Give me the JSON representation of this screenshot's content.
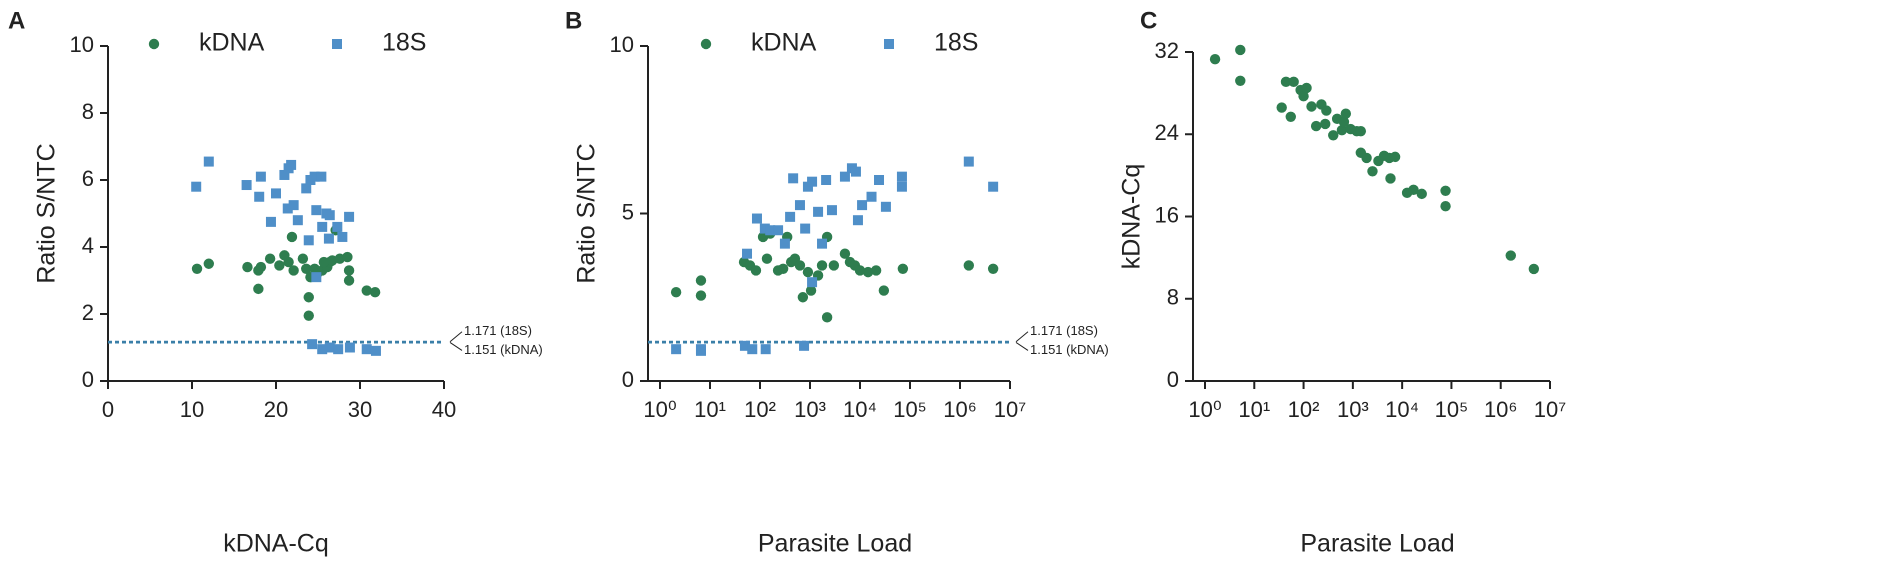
{
  "chart_data": [
    {
      "type": "scatter",
      "title": "A",
      "xlabel": "kDNA-Cq",
      "ylabel": "Ratio S/NTC",
      "xlim": [
        0,
        40
      ],
      "xticks": [
        0,
        10,
        20,
        30,
        40
      ],
      "ylim": [
        0,
        10
      ],
      "yticks": [
        0,
        2,
        4,
        6,
        8,
        10
      ],
      "legend": "top",
      "reference_lines": [
        {
          "value": 1.171,
          "label": "1.171 (18S)"
        },
        {
          "value": 1.151,
          "label": "1.151 (kDNA)"
        }
      ],
      "series": [
        {
          "name": "kDNA",
          "color": "#2e7d4f",
          "marker": "circle",
          "x": [
            10.6,
            12,
            16.6,
            17.9,
            17.9,
            18.2,
            19.3,
            20.4,
            21,
            21.5,
            21.9,
            22.1,
            23.2,
            23.6,
            23.9,
            23.9,
            24.1,
            24.6,
            24.9,
            25.5,
            26.1,
            26.4,
            26.7,
            27.1,
            27.6,
            28.5,
            28.7,
            28.7,
            30.8,
            31.8,
            25.7
          ],
          "values": [
            3.35,
            3.5,
            3.4,
            3.3,
            2.75,
            3.4,
            3.65,
            3.45,
            3.75,
            3.55,
            4.3,
            3.3,
            3.65,
            3.35,
            2.5,
            1.95,
            3.1,
            3.35,
            3.2,
            3.3,
            3.4,
            3.55,
            3.6,
            4.5,
            3.65,
            3.7,
            3.3,
            3.0,
            2.7,
            2.65,
            3.55
          ]
        },
        {
          "name": "18S",
          "color": "#4f8fc8",
          "marker": "square",
          "x": [
            10.5,
            12,
            16.5,
            18,
            18.2,
            19.4,
            20,
            21,
            21.5,
            21.8,
            21.4,
            22.1,
            22.6,
            23.6,
            23.9,
            24.1,
            24.6,
            25.4,
            24.8,
            26,
            26.4,
            25.5,
            27.3,
            27.9,
            28.7,
            24.8,
            26.3,
            24.3,
            25.5,
            26.4,
            27.4,
            28.8,
            30.8,
            31.9
          ],
          "values": [
            5.8,
            6.55,
            5.85,
            5.5,
            6.1,
            4.75,
            5.6,
            6.15,
            6.35,
            6.45,
            5.15,
            5.25,
            4.8,
            5.75,
            4.2,
            6.0,
            6.1,
            6.1,
            5.1,
            5.0,
            4.95,
            4.6,
            4.6,
            4.3,
            4.9,
            3.1,
            4.25,
            1.1,
            0.95,
            1.0,
            0.95,
            1.0,
            0.95,
            0.9
          ]
        }
      ]
    },
    {
      "type": "scatter",
      "title": "B",
      "xlabel": "Parasite Load",
      "ylabel": "Ratio S/NTC",
      "xscale": "log",
      "xlim": [
        1,
        10000000
      ],
      "xticks": [
        {
          "value": 1,
          "label": "10⁰"
        },
        {
          "value": 10,
          "label": "10¹"
        },
        {
          "value": 100,
          "label": "10²"
        },
        {
          "value": 1000,
          "label": "10³"
        },
        {
          "value": 10000,
          "label": "10⁴"
        },
        {
          "value": 100000,
          "label": "10⁵"
        },
        {
          "value": 1000000,
          "label": "10⁶"
        },
        {
          "value": 10000000,
          "label": "10⁷"
        }
      ],
      "ylim": [
        0,
        10
      ],
      "yticks": [
        0,
        5,
        10
      ],
      "legend": "top",
      "reference_lines": [
        {
          "value": 1.171,
          "label": "1.171 (18S)"
        },
        {
          "value": 1.151,
          "label": "1.151 (kDNA)"
        }
      ],
      "series": [
        {
          "name": "kDNA",
          "color": "#2e7d4f",
          "marker": "circle",
          "x": [
            2.1,
            6.6,
            6.6,
            48,
            63,
            83,
            115,
            138,
            160,
            230,
            290,
            350,
            420,
            500,
            630,
            720,
            910,
            1050,
            1450,
            1740,
            2200,
            2200,
            3000,
            5000,
            6300,
            7900,
            10000,
            14500,
            21000,
            30000,
            72000,
            1500000,
            4600000
          ],
          "values": [
            2.65,
            3.0,
            2.55,
            3.55,
            3.45,
            3.3,
            4.3,
            3.65,
            4.4,
            3.3,
            3.35,
            4.3,
            3.55,
            3.65,
            3.45,
            2.5,
            3.25,
            2.7,
            3.15,
            3.45,
            4.3,
            1.9,
            3.45,
            3.8,
            3.55,
            3.45,
            3.3,
            3.25,
            3.3,
            2.7,
            3.35,
            3.45,
            3.35
          ]
        },
        {
          "name": "18S",
          "color": "#4f8fc8",
          "marker": "square",
          "x": [
            2.1,
            6.6,
            6.6,
            50,
            70,
            130,
            760,
            55,
            87,
            125,
            160,
            230,
            315,
            400,
            460,
            630,
            800,
            910,
            1100,
            1100,
            1450,
            1740,
            2100,
            2750,
            5000,
            6900,
            8300,
            9100,
            11000,
            17000,
            24000,
            33000,
            69000,
            69000,
            1500000,
            4600000
          ],
          "values": [
            0.95,
            0.95,
            0.9,
            1.05,
            0.95,
            0.95,
            1.05,
            3.8,
            4.85,
            4.55,
            4.5,
            4.5,
            4.1,
            4.9,
            6.05,
            5.25,
            4.55,
            5.8,
            5.95,
            2.95,
            5.05,
            4.1,
            6.0,
            5.1,
            6.1,
            6.35,
            6.25,
            4.8,
            5.25,
            5.5,
            6.0,
            5.2,
            6.1,
            5.8,
            6.55,
            5.8
          ]
        }
      ]
    },
    {
      "type": "scatter",
      "title": "C",
      "xlabel": "Parasite Load",
      "ylabel": "kDNA-Cq",
      "xscale": "log",
      "xlim": [
        1,
        10000000
      ],
      "xticks": [
        {
          "value": 1,
          "label": "10⁰"
        },
        {
          "value": 10,
          "label": "10¹"
        },
        {
          "value": 100,
          "label": "10²"
        },
        {
          "value": 1000,
          "label": "10³"
        },
        {
          "value": 10000,
          "label": "10⁴"
        },
        {
          "value": 100000,
          "label": "10⁵"
        },
        {
          "value": 1000000,
          "label": "10⁶"
        },
        {
          "value": 10000000,
          "label": "10⁷"
        }
      ],
      "ylim": [
        0,
        32
      ],
      "yticks": [
        0,
        8,
        16,
        24,
        32
      ],
      "color": "#2e7d4f",
      "marker": "circle",
      "x": [
        1.6,
        5.2,
        5.2,
        36,
        44,
        55,
        63,
        87,
        100,
        115,
        145,
        180,
        230,
        275,
        290,
        400,
        480,
        600,
        660,
        720,
        900,
        1200,
        1450,
        1450,
        1900,
        2500,
        3300,
        4300,
        5500,
        5800,
        7200,
        12600,
        17000,
        25000,
        76000,
        76000,
        1600000,
        4700000
      ],
      "values": [
        31.3,
        32.2,
        29.2,
        26.6,
        29.1,
        25.7,
        29.1,
        28.3,
        27.7,
        28.5,
        26.7,
        24.8,
        26.9,
        25.0,
        26.3,
        23.9,
        25.5,
        24.4,
        25.2,
        26.0,
        24.5,
        24.3,
        24.3,
        22.2,
        21.7,
        20.4,
        21.4,
        21.9,
        21.7,
        19.7,
        21.8,
        18.3,
        18.6,
        18.2,
        18.5,
        17.0,
        12.2,
        10.9
      ]
    }
  ]
}
